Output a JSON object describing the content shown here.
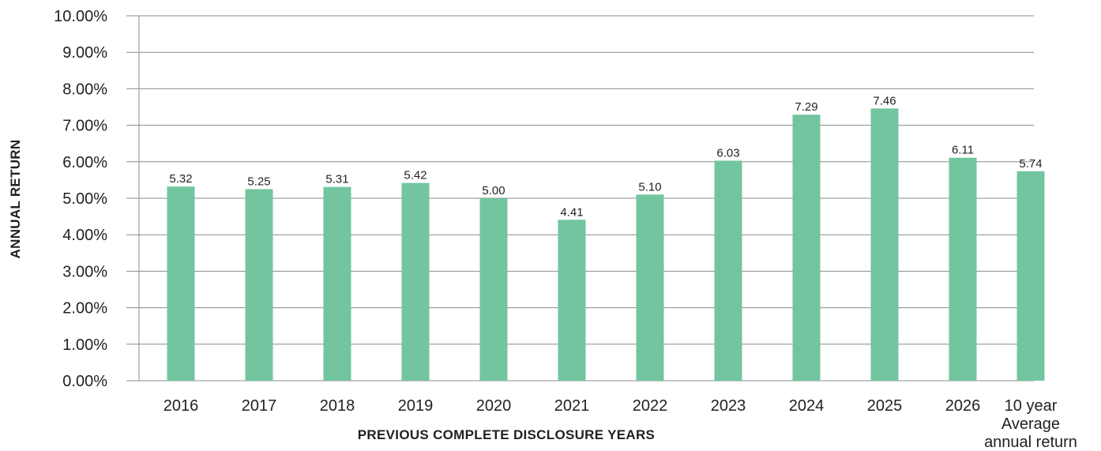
{
  "chart_data": {
    "type": "bar",
    "xlabel": "PREVIOUS COMPLETE DISCLOSURE YEARS",
    "ylabel": "ANNUAL RETURN",
    "ylim": [
      0,
      10
    ],
    "grid": true,
    "y_ticks": [
      "0.00%",
      "1.00%",
      "2.00%",
      "3.00%",
      "4.00%",
      "5.00%",
      "6.00%",
      "7.00%",
      "8.00%",
      "9.00%",
      "10.00%"
    ],
    "categories": [
      [
        "2016"
      ],
      [
        "2017"
      ],
      [
        "2018"
      ],
      [
        "2019"
      ],
      [
        "2020"
      ],
      [
        "2021"
      ],
      [
        "2022"
      ],
      [
        "2023"
      ],
      [
        "2024"
      ],
      [
        "2025"
      ],
      [
        "2026"
      ],
      [
        "10 year",
        "Average",
        "annual return"
      ]
    ],
    "values": [
      5.32,
      5.25,
      5.31,
      5.42,
      5.0,
      4.41,
      5.1,
      6.03,
      7.29,
      7.46,
      6.11,
      5.74
    ],
    "data_labels": [
      "5.32",
      "5.25",
      "5.31",
      "5.42",
      "5.00",
      "4.41",
      "5.10",
      "6.03",
      "7.29",
      "7.46",
      "6.11",
      "5.74"
    ],
    "colors": {
      "bar": "#72c59f",
      "grid": "#8c8c8c",
      "text": "#231f20"
    }
  }
}
